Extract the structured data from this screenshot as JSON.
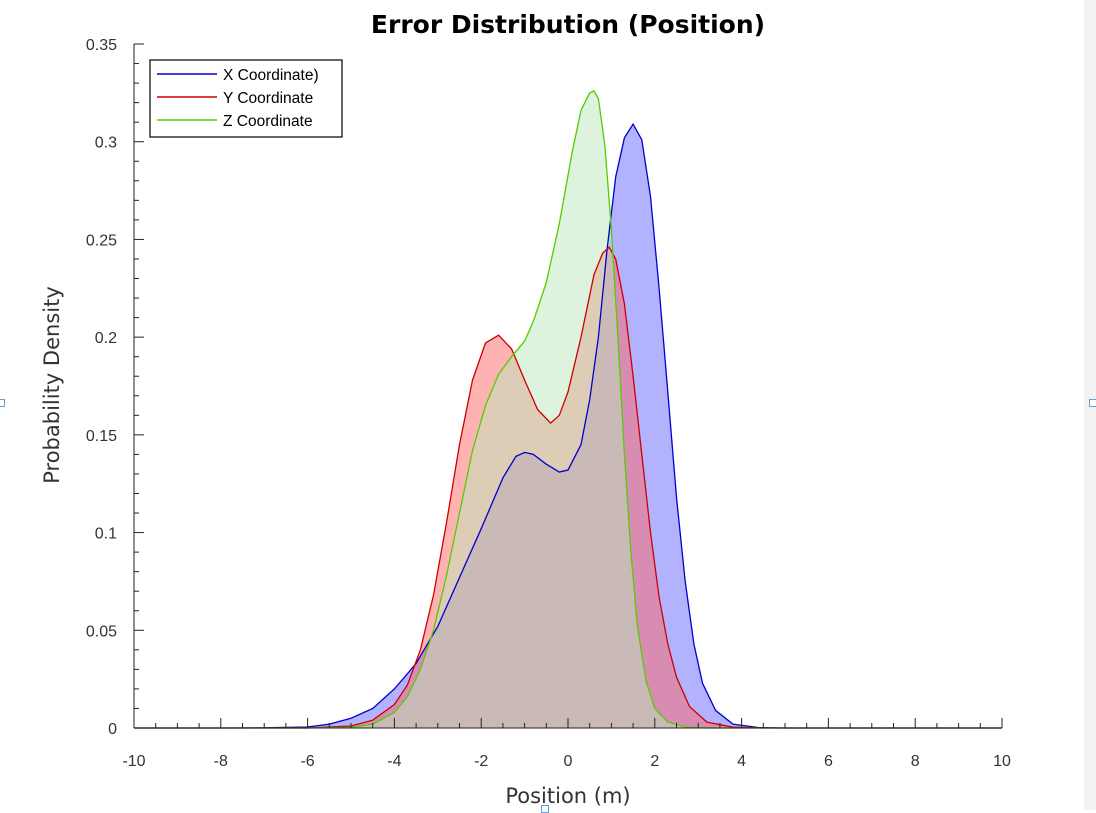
{
  "chart_data": {
    "type": "area",
    "title": "Error Distribution (Position)",
    "xlabel": "Position (m)",
    "ylabel": "Probability Density",
    "xlim": [
      -10,
      10
    ],
    "ylim": [
      0,
      0.35
    ],
    "xticks": [
      -10,
      -8,
      -6,
      -4,
      -2,
      0,
      2,
      4,
      6,
      8,
      10
    ],
    "yticks": [
      0,
      0.05,
      0.1,
      0.15,
      0.2,
      0.25,
      0.3,
      0.35
    ],
    "ytick_labels": [
      "0",
      "0.05",
      "0.1",
      "0.15",
      "0.2",
      "0.25",
      "0.3",
      "0.35"
    ],
    "grid": false,
    "legend": "top-left",
    "series": [
      {
        "name": "X Coordinate)",
        "line_color": "#0000cc",
        "fill_color": "#6666ff",
        "points": [
          [
            -10,
            0
          ],
          [
            -8,
            0
          ],
          [
            -7,
            0.0001
          ],
          [
            -6,
            0.0005
          ],
          [
            -5.5,
            0.002
          ],
          [
            -5,
            0.005
          ],
          [
            -4.5,
            0.01
          ],
          [
            -4,
            0.02
          ],
          [
            -3.5,
            0.033
          ],
          [
            -3,
            0.052
          ],
          [
            -2.5,
            0.077
          ],
          [
            -2,
            0.102
          ],
          [
            -1.5,
            0.128
          ],
          [
            -1.2,
            0.139
          ],
          [
            -1,
            0.141
          ],
          [
            -0.8,
            0.14
          ],
          [
            -0.5,
            0.135
          ],
          [
            -0.2,
            0.131
          ],
          [
            0,
            0.132
          ],
          [
            0.3,
            0.145
          ],
          [
            0.5,
            0.168
          ],
          [
            0.7,
            0.2
          ],
          [
            0.9,
            0.245
          ],
          [
            1.1,
            0.282
          ],
          [
            1.3,
            0.302
          ],
          [
            1.5,
            0.309
          ],
          [
            1.7,
            0.301
          ],
          [
            1.9,
            0.272
          ],
          [
            2.1,
            0.225
          ],
          [
            2.3,
            0.172
          ],
          [
            2.5,
            0.118
          ],
          [
            2.7,
            0.075
          ],
          [
            2.9,
            0.043
          ],
          [
            3.1,
            0.023
          ],
          [
            3.4,
            0.009
          ],
          [
            3.8,
            0.002
          ],
          [
            4.4,
            0.0002
          ],
          [
            5,
            0
          ],
          [
            10,
            0
          ]
        ]
      },
      {
        "name": "Y Coordinate",
        "line_color": "#cc0000",
        "fill_color": "#ff6666",
        "points": [
          [
            -10,
            0
          ],
          [
            -8,
            0
          ],
          [
            -6,
            0
          ],
          [
            -5,
            0.001
          ],
          [
            -4.5,
            0.004
          ],
          [
            -4,
            0.012
          ],
          [
            -3.7,
            0.022
          ],
          [
            -3.4,
            0.04
          ],
          [
            -3.1,
            0.068
          ],
          [
            -2.8,
            0.105
          ],
          [
            -2.5,
            0.145
          ],
          [
            -2.2,
            0.178
          ],
          [
            -1.9,
            0.197
          ],
          [
            -1.6,
            0.201
          ],
          [
            -1.3,
            0.194
          ],
          [
            -1,
            0.178
          ],
          [
            -0.7,
            0.163
          ],
          [
            -0.4,
            0.156
          ],
          [
            -0.2,
            0.16
          ],
          [
            0,
            0.172
          ],
          [
            0.3,
            0.2
          ],
          [
            0.6,
            0.232
          ],
          [
            0.8,
            0.243
          ],
          [
            0.95,
            0.246
          ],
          [
            1.1,
            0.24
          ],
          [
            1.3,
            0.217
          ],
          [
            1.5,
            0.18
          ],
          [
            1.7,
            0.14
          ],
          [
            1.9,
            0.1
          ],
          [
            2.1,
            0.067
          ],
          [
            2.3,
            0.043
          ],
          [
            2.5,
            0.026
          ],
          [
            2.8,
            0.011
          ],
          [
            3.2,
            0.003
          ],
          [
            3.8,
            0.0004
          ],
          [
            4.5,
            0
          ],
          [
            10,
            0
          ]
        ]
      },
      {
        "name": "Z Coordinate",
        "line_color": "#55cc00",
        "fill_color": "#bbe8bb",
        "points": [
          [
            -10,
            0
          ],
          [
            -8,
            0
          ],
          [
            -6,
            0
          ],
          [
            -5,
            0.0003
          ],
          [
            -4.5,
            0.002
          ],
          [
            -4,
            0.008
          ],
          [
            -3.7,
            0.016
          ],
          [
            -3.4,
            0.03
          ],
          [
            -3.1,
            0.05
          ],
          [
            -2.8,
            0.078
          ],
          [
            -2.5,
            0.11
          ],
          [
            -2.2,
            0.142
          ],
          [
            -1.9,
            0.165
          ],
          [
            -1.6,
            0.181
          ],
          [
            -1.3,
            0.19
          ],
          [
            -1,
            0.198
          ],
          [
            -0.8,
            0.208
          ],
          [
            -0.5,
            0.228
          ],
          [
            -0.2,
            0.258
          ],
          [
            0.1,
            0.295
          ],
          [
            0.3,
            0.316
          ],
          [
            0.5,
            0.325
          ],
          [
            0.6,
            0.326
          ],
          [
            0.7,
            0.322
          ],
          [
            0.85,
            0.298
          ],
          [
            1,
            0.255
          ],
          [
            1.15,
            0.2
          ],
          [
            1.3,
            0.14
          ],
          [
            1.45,
            0.09
          ],
          [
            1.6,
            0.052
          ],
          [
            1.8,
            0.024
          ],
          [
            2,
            0.01
          ],
          [
            2.3,
            0.003
          ],
          [
            2.7,
            0.0005
          ],
          [
            3.2,
            0
          ],
          [
            10,
            0
          ]
        ]
      }
    ]
  }
}
